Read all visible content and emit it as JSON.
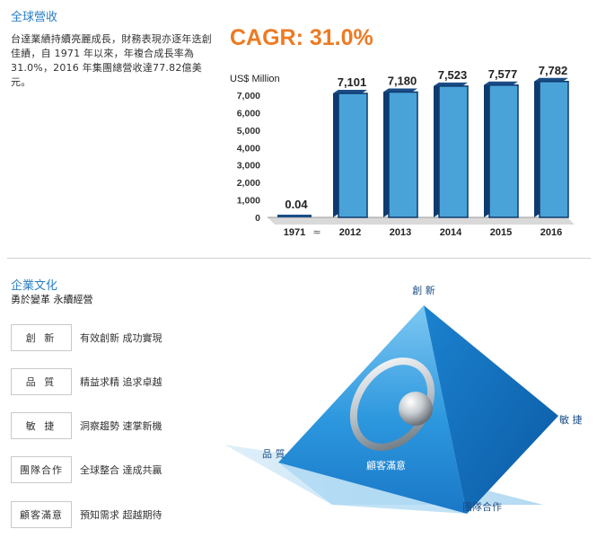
{
  "revenue": {
    "title": "全球營收",
    "intro": "台達業績持續亮麗成長，財務表現亦逐年迭創佳績，自 1971 年以來，年複合成長率為31.0%，2016 年集團總營收達77.82億美元。",
    "cagr": "CAGR: 31.0%"
  },
  "chart_data": {
    "type": "bar",
    "ylabel": "US$ Million",
    "categories": [
      "1971",
      "2012",
      "2013",
      "2014",
      "2015",
      "2016"
    ],
    "values": [
      0.04,
      7101,
      7180,
      7523,
      7577,
      7782
    ],
    "data_labels": [
      "0.04",
      "7,101",
      "7,180",
      "7,523",
      "7,577",
      "7,782"
    ],
    "ylim": [
      0,
      7000
    ],
    "yticks": [
      0,
      1000,
      2000,
      3000,
      4000,
      5000,
      6000,
      7000
    ],
    "ytick_labels": [
      "0",
      "1,000",
      "2,000",
      "3,000",
      "4,000",
      "5,000",
      "6,000",
      "7,000"
    ],
    "axis_break_glyph": "≈",
    "grid": false,
    "colors": {
      "bar_front": "#4aa3d8",
      "bar_side": "#0e3a6e",
      "bar_top": "#1a4d86",
      "first_bar": "#1a4d86"
    }
  },
  "culture": {
    "title": "企業文化",
    "slogan": "勇於變革 永續經營",
    "values": [
      {
        "label": "創 新",
        "desc": "有效創新 成功實現"
      },
      {
        "label": "品 質",
        "desc": "精益求精 追求卓越"
      },
      {
        "label": "敏 捷",
        "desc": "洞察趨勢 速掌新機"
      },
      {
        "label": "團隊合作",
        "desc": "全球整合 達成共贏"
      },
      {
        "label": "顧客滿意",
        "desc": "預知需求 超越期待"
      }
    ]
  },
  "pyramid": {
    "apex": "創 新",
    "left": "品 質",
    "right": "敏 捷",
    "bottom": "團隊合作",
    "center": "顧客滿意"
  }
}
